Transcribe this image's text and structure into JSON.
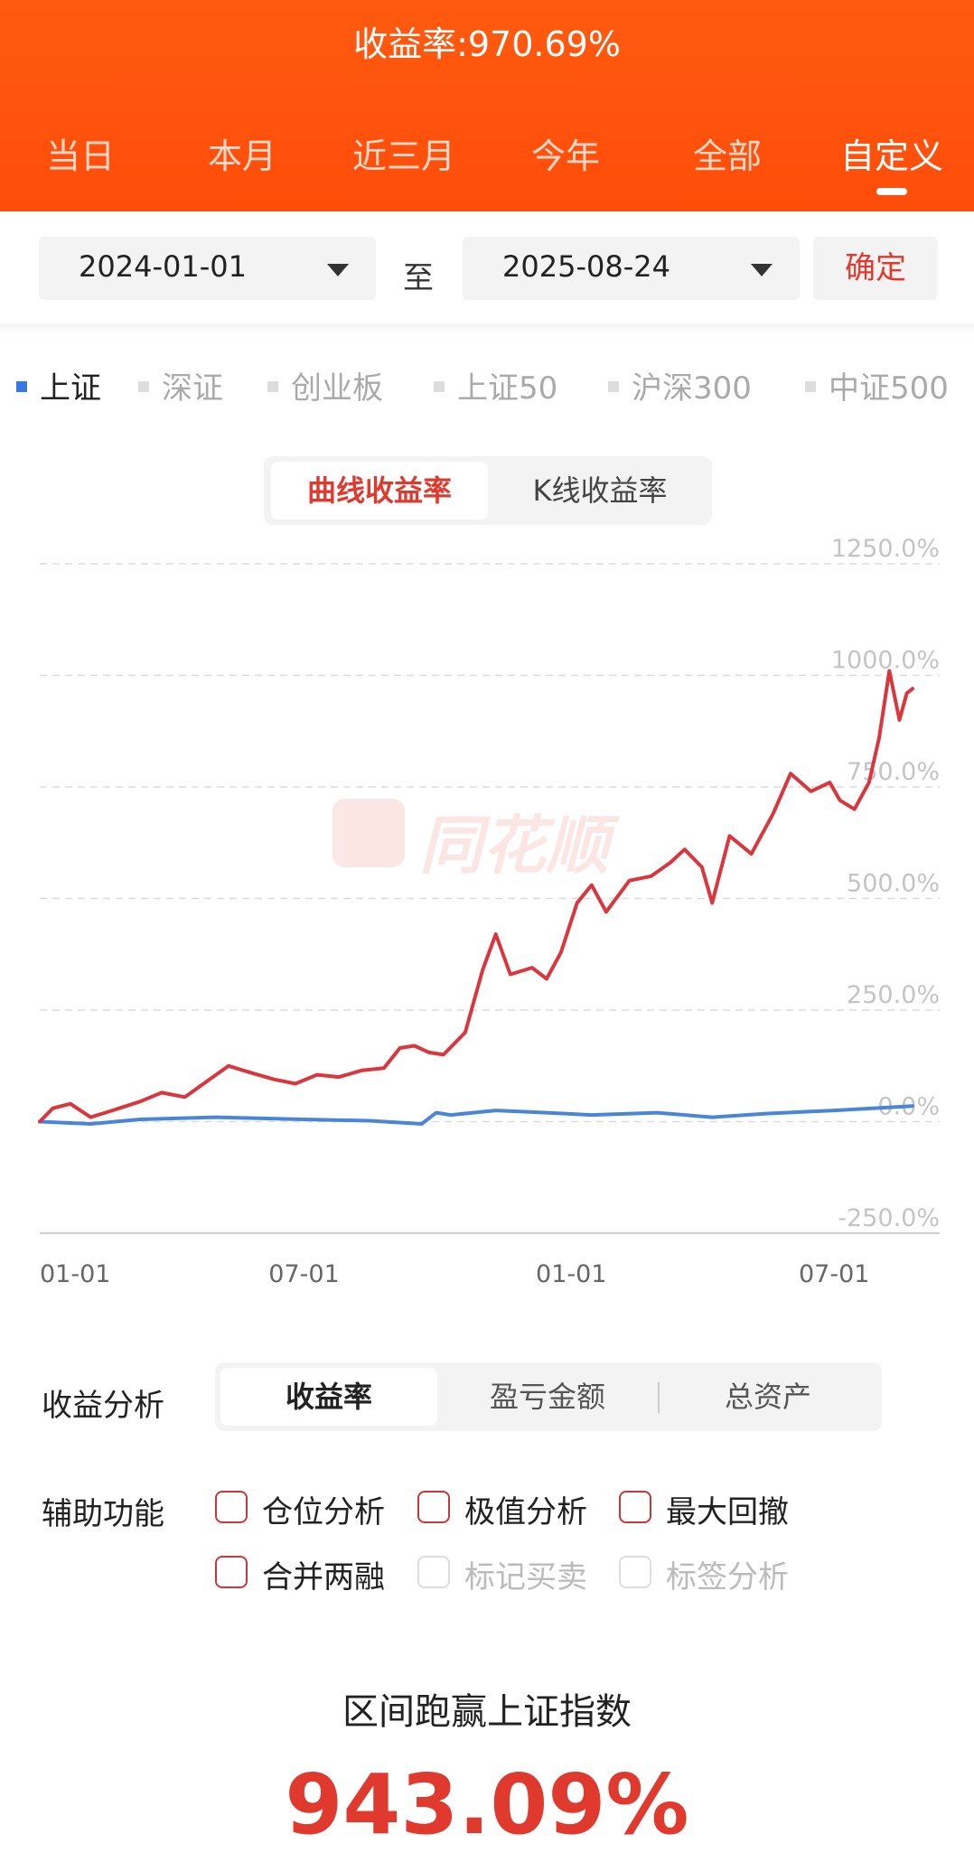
{
  "header": {
    "title": "收益率:970.69%",
    "tabs": [
      "当日",
      "本月",
      "近三月",
      "今年",
      "全部",
      "自定义"
    ],
    "active_tab": "自定义"
  },
  "date_range": {
    "start": "2024-01-01",
    "separator": "至",
    "end": "2025-08-24",
    "confirm_label": "确定"
  },
  "indices": {
    "items": [
      "上证",
      "深证",
      "创业板",
      "上证50",
      "沪深300",
      "中证500"
    ],
    "active": "上证"
  },
  "chart_mode": {
    "options": [
      "曲线收益率",
      "K线收益率"
    ],
    "active": "曲线收益率"
  },
  "watermark": {
    "text": "同花顺"
  },
  "chart_data": {
    "type": "line",
    "xlabel": "",
    "ylabel": "",
    "ylim": [
      -250,
      1250
    ],
    "y_ticks": [
      "1250.0%",
      "1000.0%",
      "750.0%",
      "500.0%",
      "250.0%",
      "0.0%",
      "-250.0%"
    ],
    "y_tick_values": [
      1250,
      1000,
      750,
      500,
      250,
      0,
      -250
    ],
    "x_ticks": [
      "01-01",
      "07-01",
      "01-01",
      "07-01"
    ],
    "x_tick_dates": [
      "2024-01-01",
      "2024-07-01",
      "2025-01-01",
      "2025-07-01"
    ],
    "xlim": [
      "2024-01-01",
      "2025-08-24"
    ],
    "grid": true,
    "series": [
      {
        "color": "#d9363e",
        "points": [
          [
            "2024-01-01",
            0
          ],
          [
            "2024-01-10",
            30
          ],
          [
            "2024-01-22",
            40
          ],
          [
            "2024-02-05",
            10
          ],
          [
            "2024-02-20",
            25
          ],
          [
            "2024-03-10",
            45
          ],
          [
            "2024-03-25",
            65
          ],
          [
            "2024-04-10",
            55
          ],
          [
            "2024-04-25",
            90
          ],
          [
            "2024-05-10",
            125
          ],
          [
            "2024-05-25",
            110
          ],
          [
            "2024-06-10",
            95
          ],
          [
            "2024-06-25",
            85
          ],
          [
            "2024-07-10",
            105
          ],
          [
            "2024-07-25",
            100
          ],
          [
            "2024-08-10",
            115
          ],
          [
            "2024-08-25",
            120
          ],
          [
            "2024-09-05",
            165
          ],
          [
            "2024-09-15",
            170
          ],
          [
            "2024-09-25",
            155
          ],
          [
            "2024-10-05",
            150
          ],
          [
            "2024-10-20",
            200
          ],
          [
            "2024-11-01",
            340
          ],
          [
            "2024-11-10",
            420
          ],
          [
            "2024-11-20",
            330
          ],
          [
            "2024-12-05",
            345
          ],
          [
            "2024-12-15",
            320
          ],
          [
            "2024-12-25",
            380
          ],
          [
            "2025-01-05",
            490
          ],
          [
            "2025-01-15",
            530
          ],
          [
            "2025-01-25",
            470
          ],
          [
            "2025-02-10",
            540
          ],
          [
            "2025-02-25",
            550
          ],
          [
            "2025-03-10",
            580
          ],
          [
            "2025-03-20",
            610
          ],
          [
            "2025-04-01",
            570
          ],
          [
            "2025-04-08",
            490
          ],
          [
            "2025-04-20",
            640
          ],
          [
            "2025-05-05",
            600
          ],
          [
            "2025-05-20",
            690
          ],
          [
            "2025-06-01",
            780
          ],
          [
            "2025-06-15",
            740
          ],
          [
            "2025-06-28",
            760
          ],
          [
            "2025-07-05",
            720
          ],
          [
            "2025-07-15",
            700
          ],
          [
            "2025-07-25",
            760
          ],
          [
            "2025-08-01",
            860
          ],
          [
            "2025-08-08",
            1010
          ],
          [
            "2025-08-15",
            900
          ],
          [
            "2025-08-20",
            960
          ],
          [
            "2025-08-24",
            970
          ]
        ]
      },
      {
        "color": "#4a86d8",
        "points": [
          [
            "2024-01-01",
            0
          ],
          [
            "2024-02-05",
            -5
          ],
          [
            "2024-03-10",
            5
          ],
          [
            "2024-05-01",
            10
          ],
          [
            "2024-07-01",
            5
          ],
          [
            "2024-08-15",
            2
          ],
          [
            "2024-09-20",
            -5
          ],
          [
            "2024-09-30",
            20
          ],
          [
            "2024-10-10",
            15
          ],
          [
            "2024-11-10",
            25
          ],
          [
            "2024-12-15",
            20
          ],
          [
            "2025-01-15",
            15
          ],
          [
            "2025-03-01",
            20
          ],
          [
            "2025-04-08",
            10
          ],
          [
            "2025-05-15",
            18
          ],
          [
            "2025-07-01",
            25
          ],
          [
            "2025-08-24",
            35
          ]
        ]
      }
    ]
  },
  "analysis": {
    "label": "收益分析",
    "options": [
      "收益率",
      "盈亏金额",
      "总资产"
    ],
    "active": "收益率"
  },
  "aux": {
    "label": "辅助功能",
    "items": [
      {
        "label": "仓位分析",
        "enabled": true
      },
      {
        "label": "极值分析",
        "enabled": true
      },
      {
        "label": "最大回撤",
        "enabled": true
      },
      {
        "label": "合并两融",
        "enabled": true
      },
      {
        "label": "标记买卖",
        "enabled": false
      },
      {
        "label": "标签分析",
        "enabled": false
      }
    ]
  },
  "outperform": {
    "title": "区间跑赢上证指数",
    "value": "943.09%"
  }
}
